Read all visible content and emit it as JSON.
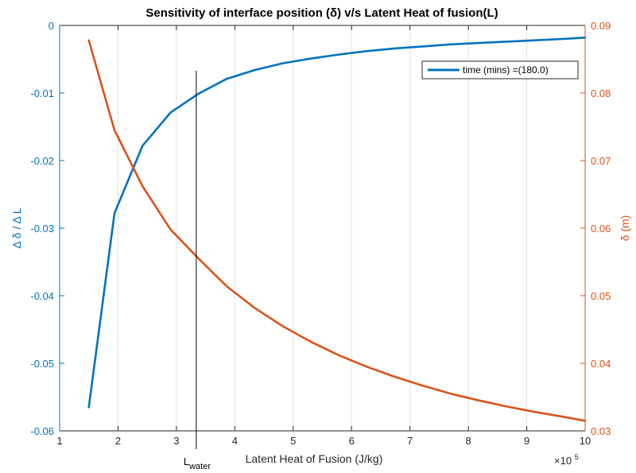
{
  "chart_data": {
    "type": "line",
    "title": "Sensitivity of interface position (δ) v/s Latent Heat of fusion(L)",
    "xlabel": "Latent Heat of Fusion (J/kg)",
    "x_exponent_label": "×10",
    "x_exponent_power": "5",
    "ylabel_left": "Δ δ / Δ L",
    "ylabel_right": "δ (m)",
    "xlim": [
      1,
      10
    ],
    "ylim_left": [
      -0.06,
      0
    ],
    "ylim_right": [
      0.03,
      0.09
    ],
    "x_ticks": [
      "1",
      "2",
      "3",
      "4",
      "5",
      "6",
      "7",
      "8",
      "9",
      "10"
    ],
    "y_left_ticks": [
      "0",
      "-0.01",
      "-0.02",
      "-0.03",
      "-0.04",
      "-0.05",
      "-0.06"
    ],
    "y_right_ticks": [
      "0.09",
      "0.08",
      "0.07",
      "0.06",
      "0.05",
      "0.04",
      "0.03"
    ],
    "grid": "vertical",
    "legend_position": "top-right",
    "legend_label": "time (mins) =(180.0)",
    "marker_line": {
      "x": 3.34,
      "label_main": "L",
      "label_sub": "water"
    },
    "x": [
      1.5,
      1.94,
      2.42,
      2.9,
      3.38,
      3.86,
      4.34,
      4.82,
      5.3,
      5.78,
      6.26,
      6.74,
      7.22,
      7.7,
      8.18,
      8.66,
      9.14,
      9.62,
      10.1
    ],
    "series": [
      {
        "axis": "left",
        "color": "#0072BD",
        "values": [
          -0.0565,
          -0.0278,
          -0.0178,
          -0.0129,
          -0.0101,
          -0.0079,
          -0.0066,
          -0.0056,
          -0.0049,
          -0.0043,
          -0.0038,
          -0.0034,
          -0.0031,
          -0.0028,
          -0.0026,
          -0.0024,
          -0.0022,
          -0.002,
          -0.0018
        ]
      },
      {
        "axis": "right",
        "color": "#D95319",
        "values": [
          0.0878,
          0.0745,
          0.0662,
          0.0598,
          0.0555,
          0.0514,
          0.0482,
          0.0455,
          0.0432,
          0.0412,
          0.0395,
          0.038,
          0.0367,
          0.0355,
          0.0345,
          0.0336,
          0.0328,
          0.0321,
          0.0315
        ]
      }
    ]
  }
}
